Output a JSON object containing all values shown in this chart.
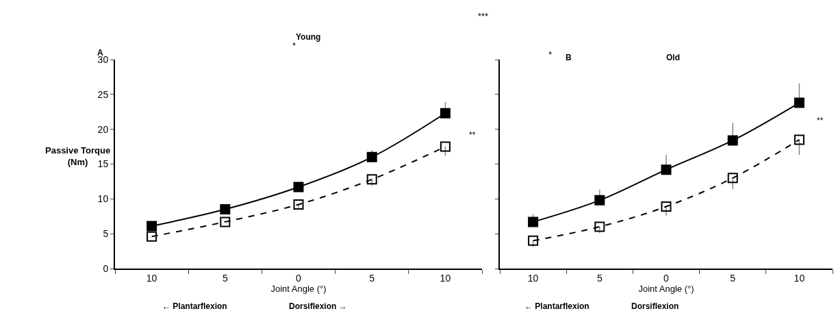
{
  "chart_data": [
    {
      "type": "line",
      "ylabel": "Passive Torque\n(Nm)",
      "xlabel": "Joint Angle (°)",
      "categories": [
        "10",
        "5",
        "0",
        "5",
        "10"
      ],
      "ylim": [
        0,
        30
      ],
      "yticks": [
        0,
        5,
        10,
        15,
        20,
        25,
        30
      ],
      "marker": "square",
      "annotations": [
        "A",
        "Young",
        "*",
        "**",
        "← Plantarflexion",
        "Dorsiflexion →",
        "***"
      ],
      "series": [
        {
          "color": "#000000",
          "line_style": "solid",
          "values": [
            6.1,
            8.5,
            11.7,
            16.0,
            22.3
          ],
          "errors": [
            null,
            null,
            [
              11.7,
              12.3
            ],
            [
              16.0,
              17.0
            ],
            [
              22.3,
              23.9
            ]
          ]
        },
        {
          "color": "#000000",
          "line_style": "dashed",
          "marker": "square-open",
          "values": [
            4.6,
            6.7,
            9.2,
            12.8,
            17.5
          ],
          "errors": [
            null,
            null,
            [
              8.7,
              9.2
            ],
            [
              11.9,
              12.8
            ],
            [
              16.2,
              17.5
            ]
          ]
        }
      ]
    },
    {
      "type": "line",
      "xlabel": "Joint Angle (°)",
      "categories": [
        "10",
        "5",
        "0",
        "5",
        "10"
      ],
      "ylim": [
        0,
        30
      ],
      "yticks": [
        0,
        5,
        10,
        15,
        20,
        25,
        30
      ],
      "tick_labels": "x",
      "marker": "square",
      "annotations": [
        "B",
        "Old",
        "*",
        "**",
        "← Plantarflexion",
        "Dorsiflexion"
      ],
      "series": [
        {
          "color": "#000000",
          "line_style": "solid",
          "values": [
            6.7,
            9.8,
            14.2,
            18.4,
            23.8
          ],
          "errors": [
            [
              6.7,
              7.8
            ],
            [
              9.8,
              11.3
            ],
            [
              14.2,
              16.3
            ],
            [
              18.4,
              20.9
            ],
            [
              23.8,
              26.6
            ]
          ]
        },
        {
          "color": "#000000",
          "line_style": "dashed",
          "marker": "square-open",
          "values": [
            4.0,
            6.0,
            8.9,
            13.0,
            18.5
          ],
          "errors": [
            [
              3.1,
              4.0
            ],
            [
              5.1,
              6.0
            ],
            [
              7.6,
              8.9
            ],
            [
              11.4,
              13.0
            ],
            [
              16.3,
              18.5
            ]
          ]
        }
      ]
    }
  ]
}
